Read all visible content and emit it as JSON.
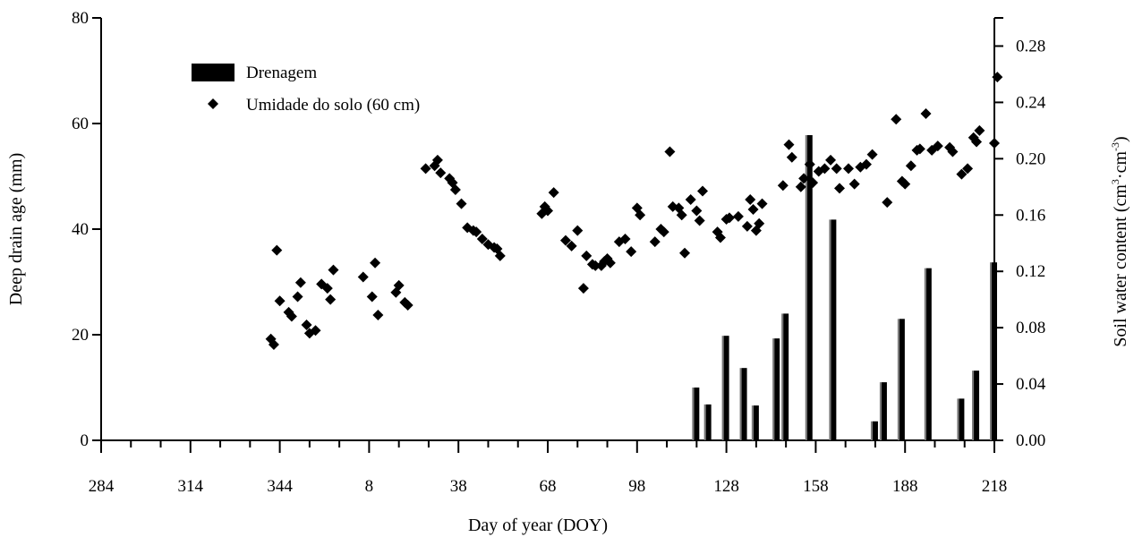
{
  "chart_data": {
    "type": "bar+scatter",
    "xlabel": "Day of year (DOY)",
    "ylabel_left": "Deep drain age (mm)",
    "ylabel_right": "Soil water content (cm³·cm⁻³)",
    "x_tick_labels": [
      "284",
      "314",
      "344",
      "8",
      "38",
      "68",
      "98",
      "128",
      "158",
      "188",
      "218"
    ],
    "xlim": [
      284,
      584
    ],
    "ylim_left": [
      0,
      80
    ],
    "yticks_left": [
      "0",
      "20",
      "40",
      "60",
      "80"
    ],
    "ylim_right": [
      0,
      0.3
    ],
    "yticks_right": [
      "0.00",
      "0.04",
      "0.08",
      "0.12",
      "0.16",
      "0.20",
      "0.24",
      "0.28"
    ],
    "grid": false,
    "legend_position": "top-left",
    "legend": [
      {
        "label": "Drenagem",
        "marker": "bar"
      },
      {
        "label": "Umidade do solo (60 cm)",
        "marker": "diamond"
      }
    ],
    "series": [
      {
        "name": "Drenagem",
        "type": "bar",
        "axis": "left",
        "x": [
          484,
          488,
          494,
          500,
          504,
          511,
          514,
          522,
          530,
          544,
          547,
          553,
          562,
          573,
          578,
          584
        ],
        "values": [
          10.0,
          6.8,
          19.8,
          13.7,
          6.6,
          19.3,
          24.0,
          57.8,
          41.8,
          3.6,
          11.0,
          23.0,
          32.6,
          7.9,
          13.2,
          33.7
        ]
      },
      {
        "name": "Umidade do solo (60 cm)",
        "type": "scatter",
        "axis": "right",
        "points": [
          [
            341,
            0.072
          ],
          [
            342,
            0.068
          ],
          [
            343,
            0.135
          ],
          [
            344,
            0.099
          ],
          [
            347,
            0.091
          ],
          [
            348,
            0.088
          ],
          [
            350,
            0.102
          ],
          [
            351,
            0.112
          ],
          [
            353,
            0.082
          ],
          [
            354,
            0.076
          ],
          [
            356,
            0.078
          ],
          [
            358,
            0.111
          ],
          [
            360,
            0.108
          ],
          [
            361,
            0.1
          ],
          [
            362,
            0.121
          ],
          [
            372,
            0.116
          ],
          [
            375,
            0.102
          ],
          [
            376,
            0.126
          ],
          [
            377,
            0.089
          ],
          [
            383,
            0.105
          ],
          [
            384,
            0.11
          ],
          [
            386,
            0.098
          ],
          [
            387,
            0.096
          ],
          [
            393,
            0.193
          ],
          [
            396,
            0.195
          ],
          [
            397,
            0.199
          ],
          [
            398,
            0.19
          ],
          [
            401,
            0.186
          ],
          [
            402,
            0.183
          ],
          [
            403,
            0.178
          ],
          [
            405,
            0.168
          ],
          [
            407,
            0.151
          ],
          [
            409,
            0.149
          ],
          [
            410,
            0.148
          ],
          [
            412,
            0.143
          ],
          [
            414,
            0.139
          ],
          [
            416,
            0.137
          ],
          [
            417,
            0.136
          ],
          [
            418,
            0.131
          ],
          [
            432,
            0.161
          ],
          [
            433,
            0.166
          ],
          [
            434,
            0.163
          ],
          [
            436,
            0.176
          ],
          [
            440,
            0.142
          ],
          [
            442,
            0.138
          ],
          [
            444,
            0.149
          ],
          [
            446,
            0.108
          ],
          [
            447,
            0.131
          ],
          [
            449,
            0.125
          ],
          [
            450,
            0.124
          ],
          [
            452,
            0.124
          ],
          [
            453,
            0.127
          ],
          [
            454,
            0.129
          ],
          [
            455,
            0.126
          ],
          [
            458,
            0.141
          ],
          [
            460,
            0.143
          ],
          [
            462,
            0.134
          ],
          [
            464,
            0.165
          ],
          [
            465,
            0.16
          ],
          [
            470,
            0.141
          ],
          [
            472,
            0.15
          ],
          [
            473,
            0.148
          ],
          [
            475,
            0.205
          ],
          [
            476,
            0.166
          ],
          [
            478,
            0.165
          ],
          [
            479,
            0.16
          ],
          [
            480,
            0.133
          ],
          [
            482,
            0.171
          ],
          [
            484,
            0.163
          ],
          [
            485,
            0.156
          ],
          [
            486,
            0.177
          ],
          [
            491,
            0.148
          ],
          [
            492,
            0.144
          ],
          [
            494,
            0.157
          ],
          [
            495,
            0.158
          ],
          [
            498,
            0.159
          ],
          [
            501,
            0.152
          ],
          [
            502,
            0.171
          ],
          [
            503,
            0.164
          ],
          [
            504,
            0.149
          ],
          [
            505,
            0.154
          ],
          [
            506,
            0.168
          ],
          [
            513,
            0.181
          ],
          [
            515,
            0.21
          ],
          [
            516,
            0.201
          ],
          [
            519,
            0.18
          ],
          [
            520,
            0.186
          ],
          [
            522,
            0.196
          ],
          [
            523,
            0.183
          ],
          [
            525,
            0.191
          ],
          [
            527,
            0.193
          ],
          [
            529,
            0.199
          ],
          [
            531,
            0.193
          ],
          [
            532,
            0.179
          ],
          [
            535,
            0.193
          ],
          [
            537,
            0.182
          ],
          [
            539,
            0.194
          ],
          [
            541,
            0.196
          ],
          [
            543,
            0.203
          ],
          [
            548,
            0.169
          ],
          [
            551,
            0.228
          ],
          [
            553,
            0.184
          ],
          [
            554,
            0.182
          ],
          [
            556,
            0.195
          ],
          [
            558,
            0.206
          ],
          [
            559,
            0.207
          ],
          [
            561,
            0.232
          ],
          [
            563,
            0.206
          ],
          [
            565,
            0.209
          ],
          [
            569,
            0.208
          ],
          [
            570,
            0.205
          ],
          [
            573,
            0.189
          ],
          [
            575,
            0.193
          ],
          [
            577,
            0.215
          ],
          [
            578,
            0.212
          ],
          [
            579,
            0.22
          ],
          [
            584,
            0.211
          ],
          [
            585,
            0.258
          ]
        ]
      }
    ]
  }
}
